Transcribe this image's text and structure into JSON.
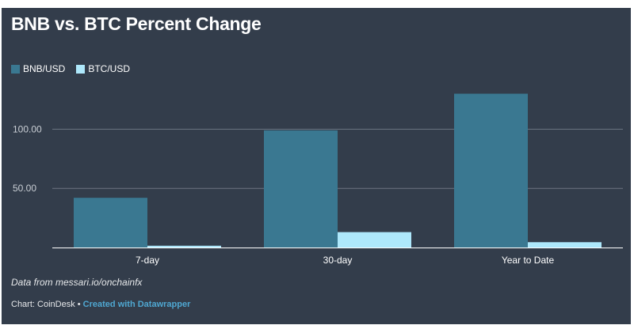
{
  "title": "BNB vs. BTC Percent Change",
  "legend": [
    {
      "label": "BNB/USD",
      "color": "#3a7891"
    },
    {
      "label": "BTC/USD",
      "color": "#aee8fb"
    }
  ],
  "chart_data": {
    "type": "bar",
    "title": "BNB vs. BTC Percent Change",
    "categories": [
      "7-day",
      "30-day",
      "Year to Date"
    ],
    "series": [
      {
        "name": "BNB/USD",
        "values": [
          42,
          99,
          130
        ],
        "color": "#3a7891"
      },
      {
        "name": "BTC/USD",
        "values": [
          1.5,
          13,
          4.5
        ],
        "color": "#aee8fb"
      }
    ],
    "yticks": [
      50,
      100
    ],
    "ytick_labels": [
      "50.00",
      "100.00"
    ],
    "ylim": [
      0,
      133
    ],
    "grid": true,
    "legend_position": "top-left"
  },
  "source": "Data from messari.io/onchainfx",
  "credit": {
    "prefix": "Chart: CoinDesk • ",
    "link": "Created with Datawrapper"
  }
}
